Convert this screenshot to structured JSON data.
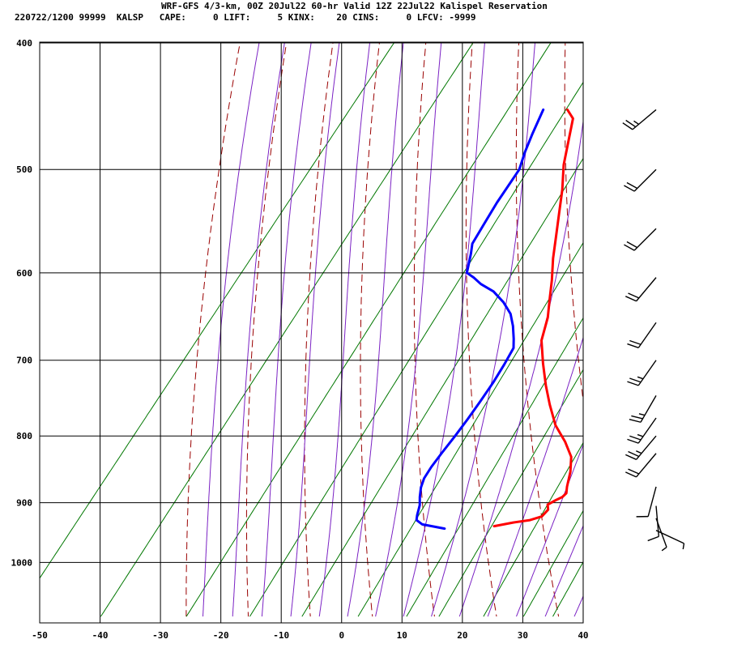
{
  "header": {
    "line1": "WRF-GFS 4/3-km, 00Z 20Jul22 60-hr Valid 12Z 22Jul22 Kalispel Reservation",
    "line2": "220722/1200 99999  KALSP   CAPE:     0 LIFT:     5 KINX:    20 CINS:     0 LFCV: -9999"
  },
  "colors": {
    "temperature": "#ff0000",
    "dewpoint": "#0000ff",
    "dry_adiabat": "#9a0000",
    "moist_adiabat": "#7b22c4",
    "mixing_ratio": "#007700",
    "grid": "#000000"
  },
  "chart_data": {
    "type": "line",
    "title": "",
    "xlabel": "",
    "ylabel": "",
    "x_range": [
      -50,
      40
    ],
    "y_range": [
      1040,
      400
    ],
    "x_ticks": [
      "-50",
      "-40",
      "-30",
      "-20",
      "-10",
      "0",
      "10",
      "20",
      "30",
      "40"
    ],
    "y_ticks": [
      "400",
      "500",
      "600",
      "700",
      "800",
      "900",
      "1000"
    ],
    "grid": true,
    "series": [
      {
        "name": "",
        "color": "#ff0000",
        "points": [
          [
            13.3,
            938
          ],
          [
            16,
            932
          ],
          [
            18.5,
            928
          ],
          [
            20,
            922
          ],
          [
            20.2,
            911
          ],
          [
            19.5,
            903
          ],
          [
            20.3,
            896
          ],
          [
            21,
            891
          ],
          [
            21.2,
            885
          ],
          [
            20.5,
            875
          ],
          [
            19.2,
            852
          ],
          [
            17.5,
            830
          ],
          [
            14.6,
            808
          ],
          [
            11,
            785
          ],
          [
            7.5,
            757
          ],
          [
            4.5,
            732
          ],
          [
            1.3,
            704
          ],
          [
            -1.8,
            676
          ],
          [
            -3.6,
            649
          ],
          [
            -5.4,
            630
          ],
          [
            -7.5,
            608
          ],
          [
            -10,
            585
          ],
          [
            -12.3,
            562
          ],
          [
            -14.6,
            540
          ],
          [
            -17,
            518
          ],
          [
            -19.8,
            496
          ],
          [
            -24,
            457
          ],
          [
            -26,
            450
          ]
        ]
      },
      {
        "name": "",
        "color": "#0000ff",
        "points": [
          [
            5.4,
            942
          ],
          [
            1.2,
            935
          ],
          [
            -0.3,
            928
          ],
          [
            -0.8,
            920
          ],
          [
            -1.6,
            904
          ],
          [
            -2.6,
            891
          ],
          [
            -3.6,
            876
          ],
          [
            -4.2,
            862
          ],
          [
            -4.4,
            845
          ],
          [
            -4.4,
            824
          ],
          [
            -4.3,
            800
          ],
          [
            -4.3,
            776
          ],
          [
            -4.4,
            752
          ],
          [
            -4.6,
            728
          ],
          [
            -5,
            705
          ],
          [
            -5.5,
            685
          ],
          [
            -6.6,
            674
          ],
          [
            -8.3,
            659
          ],
          [
            -10.2,
            645
          ],
          [
            -12.8,
            632
          ],
          [
            -15.8,
            620
          ],
          [
            -18.8,
            612
          ],
          [
            -20.8,
            605
          ],
          [
            -22.5,
            600
          ],
          [
            -24.2,
            580
          ],
          [
            -25.2,
            570
          ],
          [
            -25.7,
            550
          ],
          [
            -26.2,
            530
          ],
          [
            -26.6,
            500
          ],
          [
            -27.8,
            485
          ],
          [
            -28.8,
            470
          ],
          [
            -30,
            450
          ]
        ]
      }
    ],
    "wind_barbs": [
      {
        "p": 450,
        "speed_kt": 25,
        "dir_deg": 230
      },
      {
        "p": 500,
        "speed_kt": 20,
        "dir_deg": 225
      },
      {
        "p": 555,
        "speed_kt": 20,
        "dir_deg": 225
      },
      {
        "p": 605,
        "speed_kt": 20,
        "dir_deg": 220
      },
      {
        "p": 655,
        "speed_kt": 20,
        "dir_deg": 215
      },
      {
        "p": 700,
        "speed_kt": 25,
        "dir_deg": 215
      },
      {
        "p": 745,
        "speed_kt": 25,
        "dir_deg": 210
      },
      {
        "p": 775,
        "speed_kt": 25,
        "dir_deg": 215
      },
      {
        "p": 800,
        "speed_kt": 25,
        "dir_deg": 220
      },
      {
        "p": 825,
        "speed_kt": 20,
        "dir_deg": 220
      },
      {
        "p": 875,
        "speed_kt": 10,
        "dir_deg": 195
      },
      {
        "p": 905,
        "speed_kt": 10,
        "dir_deg": 175
      },
      {
        "p": 925,
        "speed_kt": 5,
        "dir_deg": 160
      },
      {
        "p": 945,
        "speed_kt": 5,
        "dir_deg": 115
      }
    ]
  }
}
